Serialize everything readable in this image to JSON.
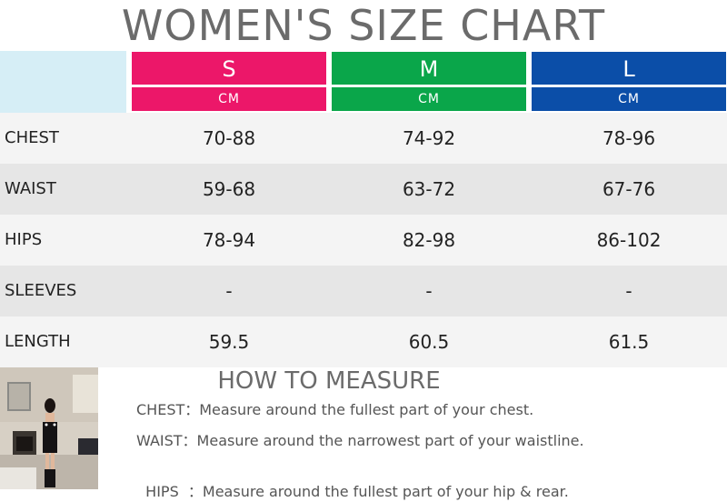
{
  "title": "WOMEN'S SIZE CHART",
  "sizes": [
    {
      "label": "S",
      "unit": "CM",
      "color": "#ec1769"
    },
    {
      "label": "M",
      "unit": "CM",
      "color": "#0aa64a"
    },
    {
      "label": "L",
      "unit": "CM",
      "color": "#0b4ea8"
    }
  ],
  "rows": [
    {
      "label": "CHEST",
      "values": [
        "70-88",
        "74-92",
        "78-96"
      ]
    },
    {
      "label": "WAIST",
      "values": [
        "59-68",
        "63-72",
        "67-76"
      ]
    },
    {
      "label": "HIPS",
      "values": [
        "78-94",
        "82-98",
        "86-102"
      ]
    },
    {
      "label": "SLEEVES",
      "values": [
        "-",
        "-",
        "-"
      ]
    },
    {
      "label": "LENGTH",
      "values": [
        "59.5",
        "60.5",
        "61.5"
      ]
    }
  ],
  "how_to_measure": {
    "title": "HOW TO MEASURE",
    "items": [
      {
        "key": "CHEST：",
        "text": "Measure around the fullest part of your chest."
      },
      {
        "key": "WAIST：",
        "text": "Measure around the narrowest part of your waistline."
      },
      {
        "key": "HIPS  ：",
        "text": "Measure around the fullest part of your hip & rear."
      }
    ]
  }
}
